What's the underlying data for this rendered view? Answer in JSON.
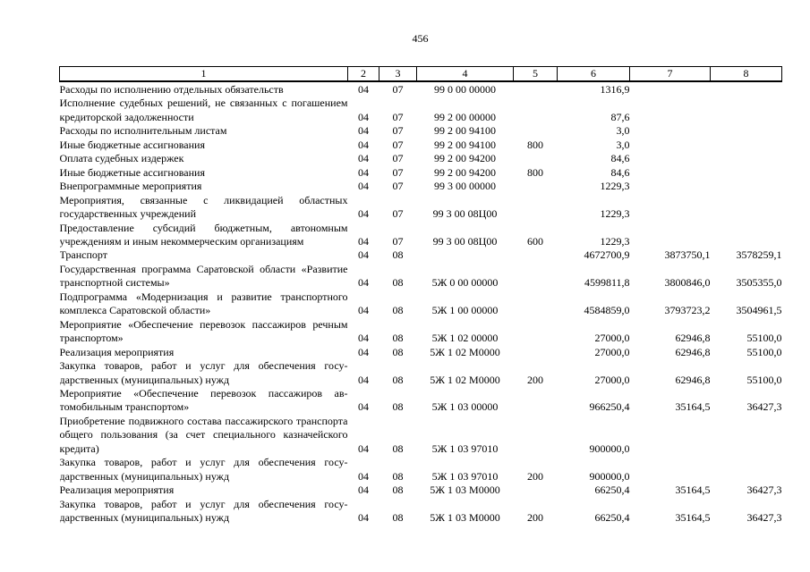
{
  "page": {
    "number": "456"
  },
  "table": {
    "headers": [
      "1",
      "2",
      "3",
      "4",
      "5",
      "6",
      "7",
      "8"
    ],
    "rows": [
      {
        "c1": "Расходы по исполнению отдельных обязательств",
        "c2": "04",
        "c3": "07",
        "c4": "99 0 00 00000",
        "c5": "",
        "c6": "1316,9",
        "c7": "",
        "c8": ""
      },
      {
        "c1": "Исполнение судебных решений, не связанных с пога­шением кредиторской задолженности",
        "c2": "04",
        "c3": "07",
        "c4": "99 2 00 00000",
        "c5": "",
        "c6": "87,6",
        "c7": "",
        "c8": ""
      },
      {
        "c1": "Расходы по исполнительным листам",
        "c2": "04",
        "c3": "07",
        "c4": "99 2 00 94100",
        "c5": "",
        "c6": "3,0",
        "c7": "",
        "c8": ""
      },
      {
        "c1": "Иные бюджетные ассигнования",
        "c2": "04",
        "c3": "07",
        "c4": "99 2 00 94100",
        "c5": "800",
        "c6": "3,0",
        "c7": "",
        "c8": ""
      },
      {
        "c1": "Оплата судебных издержек",
        "c2": "04",
        "c3": "07",
        "c4": "99 2 00 94200",
        "c5": "",
        "c6": "84,6",
        "c7": "",
        "c8": ""
      },
      {
        "c1": "Иные бюджетные ассигнования",
        "c2": "04",
        "c3": "07",
        "c4": "99 2 00 94200",
        "c5": "800",
        "c6": "84,6",
        "c7": "",
        "c8": ""
      },
      {
        "c1": "Внепрограммные мероприятия",
        "c2": "04",
        "c3": "07",
        "c4": "99 3 00 00000",
        "c5": "",
        "c6": "1229,3",
        "c7": "",
        "c8": ""
      },
      {
        "c1": "Мероприятия, связанные с ликвидацией областных государственных учреждений",
        "c2": "04",
        "c3": "07",
        "c4": "99 3 00 08Ц00",
        "c5": "",
        "c6": "1229,3",
        "c7": "",
        "c8": ""
      },
      {
        "c1": "Предоставление субсидий бюджетным, автономным учреждениям и иным некоммерческим организациям",
        "c2": "04",
        "c3": "07",
        "c4": "99 3 00 08Ц00",
        "c5": "600",
        "c6": "1229,3",
        "c7": "",
        "c8": ""
      },
      {
        "c1": "Транспорт",
        "c2": "04",
        "c3": "08",
        "c4": "",
        "c5": "",
        "c6": "4672700,9",
        "c7": "3873750,1",
        "c8": "3578259,1"
      },
      {
        "c1": "Государственная программа Саратовской области «Развитие транспортной системы»",
        "c2": "04",
        "c3": "08",
        "c4": "5Ж 0 00 00000",
        "c5": "",
        "c6": "4599811,8",
        "c7": "3800846,0",
        "c8": "3505355,0"
      },
      {
        "c1": "Подпрограмма «Модернизация и развитие транспорт­ного комплекса Саратовской области»",
        "c2": "04",
        "c3": "08",
        "c4": "5Ж 1 00 00000",
        "c5": "",
        "c6": "4584859,0",
        "c7": "3793723,2",
        "c8": "3504961,5"
      },
      {
        "c1": "Мероприятие «Обеспечение перевозок пассажиров речным транспортом»",
        "c2": "04",
        "c3": "08",
        "c4": "5Ж 1 02 00000",
        "c5": "",
        "c6": "27000,0",
        "c7": "62946,8",
        "c8": "55100,0"
      },
      {
        "c1": "Реализация мероприятия",
        "c2": "04",
        "c3": "08",
        "c4": "5Ж 1 02 М0000",
        "c5": "",
        "c6": "27000,0",
        "c7": "62946,8",
        "c8": "55100,0"
      },
      {
        "c1": "Закупка товаров, работ и услуг для обеспечения госу­дарственных (муниципальных) нужд",
        "c2": "04",
        "c3": "08",
        "c4": "5Ж 1 02 М0000",
        "c5": "200",
        "c6": "27000,0",
        "c7": "62946,8",
        "c8": "55100,0"
      },
      {
        "c1": "Мероприятие «Обеспечение перевозок пассажиров ав­томобильным транспортом»",
        "c2": "04",
        "c3": "08",
        "c4": "5Ж 1 03 00000",
        "c5": "",
        "c6": "966250,4",
        "c7": "35164,5",
        "c8": "36427,3"
      },
      {
        "c1": "Приобретение подвижного состава пассажирского транспорта общего пользования (за счет специального казначейского кредита)",
        "c2": "04",
        "c3": "08",
        "c4": "5Ж 1 03 97010",
        "c5": "",
        "c6": "900000,0",
        "c7": "",
        "c8": ""
      },
      {
        "c1": "Закупка товаров, работ и услуг для обеспечения госу­дарственных (муниципальных) нужд",
        "c2": "04",
        "c3": "08",
        "c4": "5Ж 1 03 97010",
        "c5": "200",
        "c6": "900000,0",
        "c7": "",
        "c8": ""
      },
      {
        "c1": "Реализация мероприятия",
        "c2": "04",
        "c3": "08",
        "c4": "5Ж 1 03 М0000",
        "c5": "",
        "c6": "66250,4",
        "c7": "35164,5",
        "c8": "36427,3"
      },
      {
        "c1": "Закупка товаров, работ и услуг для обеспечения госу­дарственных (муниципальных) нужд",
        "c2": "04",
        "c3": "08",
        "c4": "5Ж 1 03 М0000",
        "c5": "200",
        "c6": "66250,4",
        "c7": "35164,5",
        "c8": "36427,3"
      }
    ]
  }
}
